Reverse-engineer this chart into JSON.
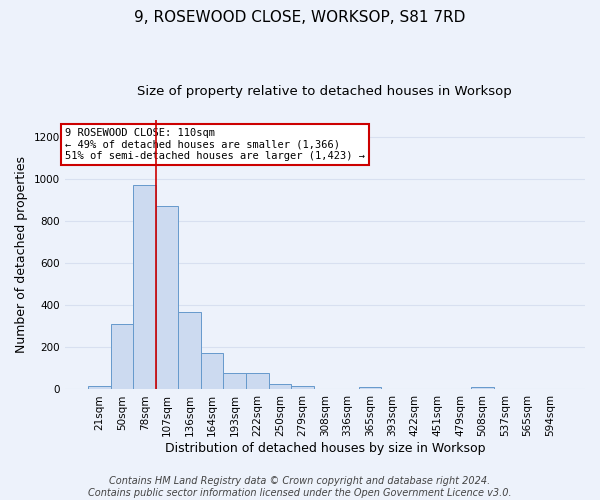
{
  "title": "9, ROSEWOOD CLOSE, WORKSOP, S81 7RD",
  "subtitle": "Size of property relative to detached houses in Worksop",
  "xlabel": "Distribution of detached houses by size in Worksop",
  "ylabel": "Number of detached properties",
  "footer_line1": "Contains HM Land Registry data © Crown copyright and database right 2024.",
  "footer_line2": "Contains public sector information licensed under the Open Government Licence v3.0.",
  "categories": [
    "21sqm",
    "50sqm",
    "78sqm",
    "107sqm",
    "136sqm",
    "164sqm",
    "193sqm",
    "222sqm",
    "250sqm",
    "279sqm",
    "308sqm",
    "336sqm",
    "365sqm",
    "393sqm",
    "422sqm",
    "451sqm",
    "479sqm",
    "508sqm",
    "537sqm",
    "565sqm",
    "594sqm"
  ],
  "values": [
    15,
    310,
    970,
    870,
    370,
    175,
    80,
    80,
    25,
    15,
    0,
    0,
    12,
    0,
    0,
    0,
    0,
    12,
    0,
    0,
    0
  ],
  "bar_color": "#ccdaf0",
  "bar_edge_color": "#6699cc",
  "background_color": "#edf2fb",
  "grid_color": "#d8e0f0",
  "annotation_text": "9 ROSEWOOD CLOSE: 110sqm\n← 49% of detached houses are smaller (1,366)\n51% of semi-detached houses are larger (1,423) →",
  "annotation_box_facecolor": "#ffffff",
  "annotation_box_edgecolor": "#cc0000",
  "vline_position": 2.5,
  "vline_color": "#cc0000",
  "ylim": [
    0,
    1280
  ],
  "yticks": [
    0,
    200,
    400,
    600,
    800,
    1000,
    1200
  ],
  "title_fontsize": 11,
  "subtitle_fontsize": 9.5,
  "xlabel_fontsize": 9,
  "ylabel_fontsize": 9,
  "tick_fontsize": 7.5,
  "footer_fontsize": 7
}
